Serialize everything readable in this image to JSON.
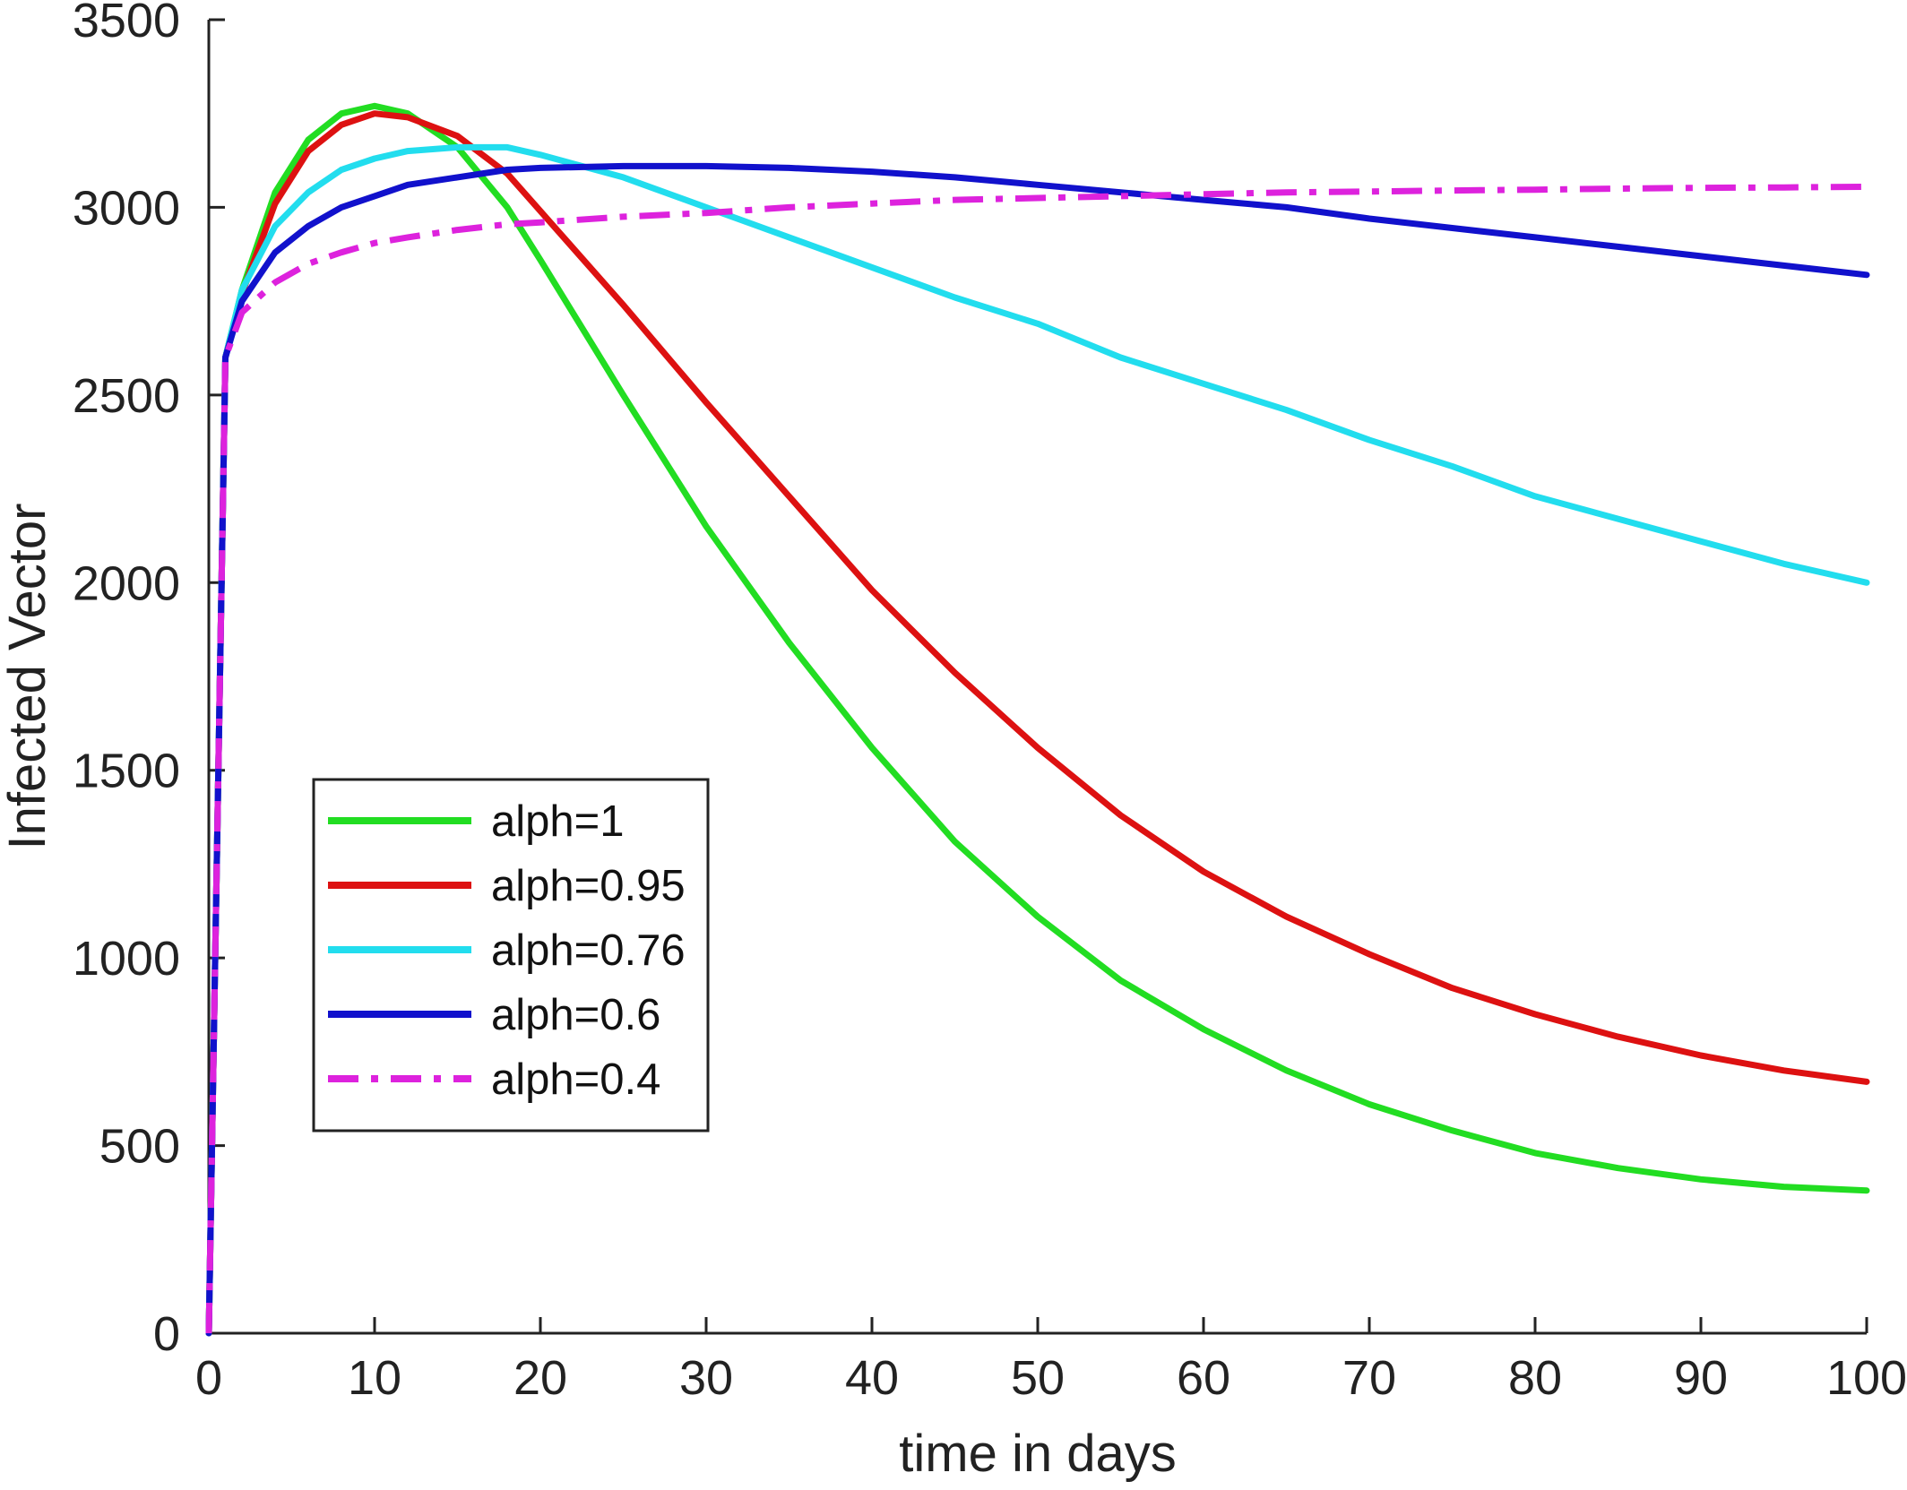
{
  "chart_data": {
    "type": "line",
    "title": "",
    "xlabel": "time in days",
    "ylabel": "Infected Vector",
    "xlim": [
      0,
      100
    ],
    "ylim": [
      0,
      3500
    ],
    "xticks": [
      0,
      10,
      20,
      30,
      40,
      50,
      60,
      70,
      80,
      90,
      100
    ],
    "xtick_labels": [
      "0",
      "10",
      "20",
      "30",
      "40",
      "50",
      "60",
      "70",
      "80",
      "90",
      "100"
    ],
    "yticks": [
      0,
      500,
      1000,
      1500,
      2000,
      2500,
      3000,
      3500
    ],
    "ytick_labels": [
      "0",
      "500",
      "1000",
      "1500",
      "2000",
      "2500",
      "3000",
      "3500"
    ],
    "grid": false,
    "legend_position": "lower-left",
    "x": [
      0,
      1,
      2,
      4,
      6,
      8,
      10,
      12,
      15,
      18,
      20,
      25,
      30,
      35,
      40,
      45,
      50,
      55,
      60,
      65,
      70,
      75,
      80,
      85,
      90,
      95,
      100
    ],
    "series": [
      {
        "name": "alph=1",
        "color": "#22dd22",
        "dash": "solid",
        "values": [
          0,
          2600,
          2780,
          3040,
          3180,
          3250,
          3270,
          3250,
          3160,
          3000,
          2860,
          2500,
          2150,
          1840,
          1560,
          1310,
          1110,
          940,
          810,
          700,
          610,
          540,
          480,
          440,
          410,
          390,
          380
        ]
      },
      {
        "name": "alph=0.95",
        "color": "#dd1111",
        "dash": "solid",
        "values": [
          0,
          2600,
          2770,
          3010,
          3150,
          3220,
          3250,
          3240,
          3190,
          3090,
          2990,
          2740,
          2480,
          2230,
          1980,
          1760,
          1560,
          1380,
          1230,
          1110,
          1010,
          920,
          850,
          790,
          740,
          700,
          670
        ]
      },
      {
        "name": "alph=0.76",
        "color": "#22ddee",
        "dash": "solid",
        "values": [
          0,
          2600,
          2780,
          2950,
          3040,
          3100,
          3130,
          3150,
          3160,
          3160,
          3140,
          3080,
          3000,
          2920,
          2840,
          2760,
          2690,
          2600,
          2530,
          2460,
          2380,
          2310,
          2230,
          2170,
          2110,
          2050,
          2000
        ]
      },
      {
        "name": "alph=0.6",
        "color": "#1111cc",
        "dash": "solid",
        "values": [
          0,
          2600,
          2750,
          2880,
          2950,
          3000,
          3030,
          3060,
          3080,
          3100,
          3105,
          3110,
          3110,
          3105,
          3095,
          3080,
          3060,
          3040,
          3020,
          3000,
          2970,
          2945,
          2920,
          2895,
          2870,
          2845,
          2820
        ]
      },
      {
        "name": "alph=0.4",
        "color": "#dd22dd",
        "dash": "dashdot",
        "values": [
          0,
          2600,
          2720,
          2800,
          2850,
          2880,
          2905,
          2920,
          2940,
          2955,
          2960,
          2975,
          2985,
          3000,
          3010,
          3020,
          3025,
          3030,
          3035,
          3040,
          3042,
          3045,
          3047,
          3050,
          3052,
          3053,
          3055
        ]
      }
    ]
  }
}
